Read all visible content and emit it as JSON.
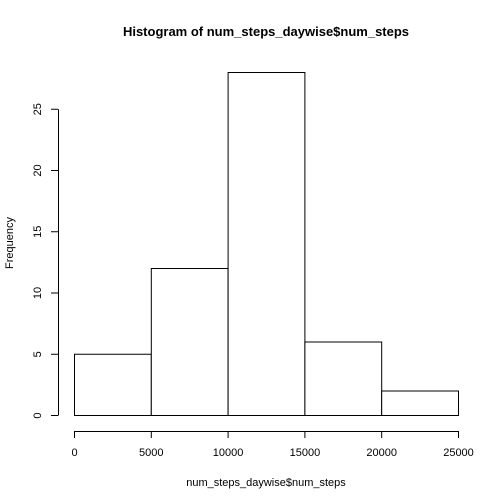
{
  "chart_data": {
    "type": "bar",
    "title": "Histogram of num_steps_daywise$num_steps",
    "xlabel": "num_steps_daywise$num_steps",
    "ylabel": "Frequency",
    "bins": [
      {
        "from": 0,
        "to": 5000,
        "count": 5
      },
      {
        "from": 5000,
        "to": 10000,
        "count": 12
      },
      {
        "from": 10000,
        "to": 15000,
        "count": 28
      },
      {
        "from": 15000,
        "to": 20000,
        "count": 6
      },
      {
        "from": 20000,
        "to": 25000,
        "count": 2
      }
    ],
    "xlim": [
      0,
      25000
    ],
    "ylim": [
      0,
      28
    ],
    "x_ticks": [
      0,
      5000,
      10000,
      15000,
      20000,
      25000
    ],
    "x_tick_labels": [
      "0",
      "5000",
      "10000",
      "15000",
      "20000",
      "25000"
    ],
    "y_ticks": [
      0,
      5,
      10,
      15,
      20,
      25
    ],
    "y_tick_labels": [
      "0",
      "5",
      "10",
      "15",
      "20",
      "25"
    ],
    "grid": false,
    "bar_fill": "#ffffff",
    "bar_stroke": "#000000"
  }
}
